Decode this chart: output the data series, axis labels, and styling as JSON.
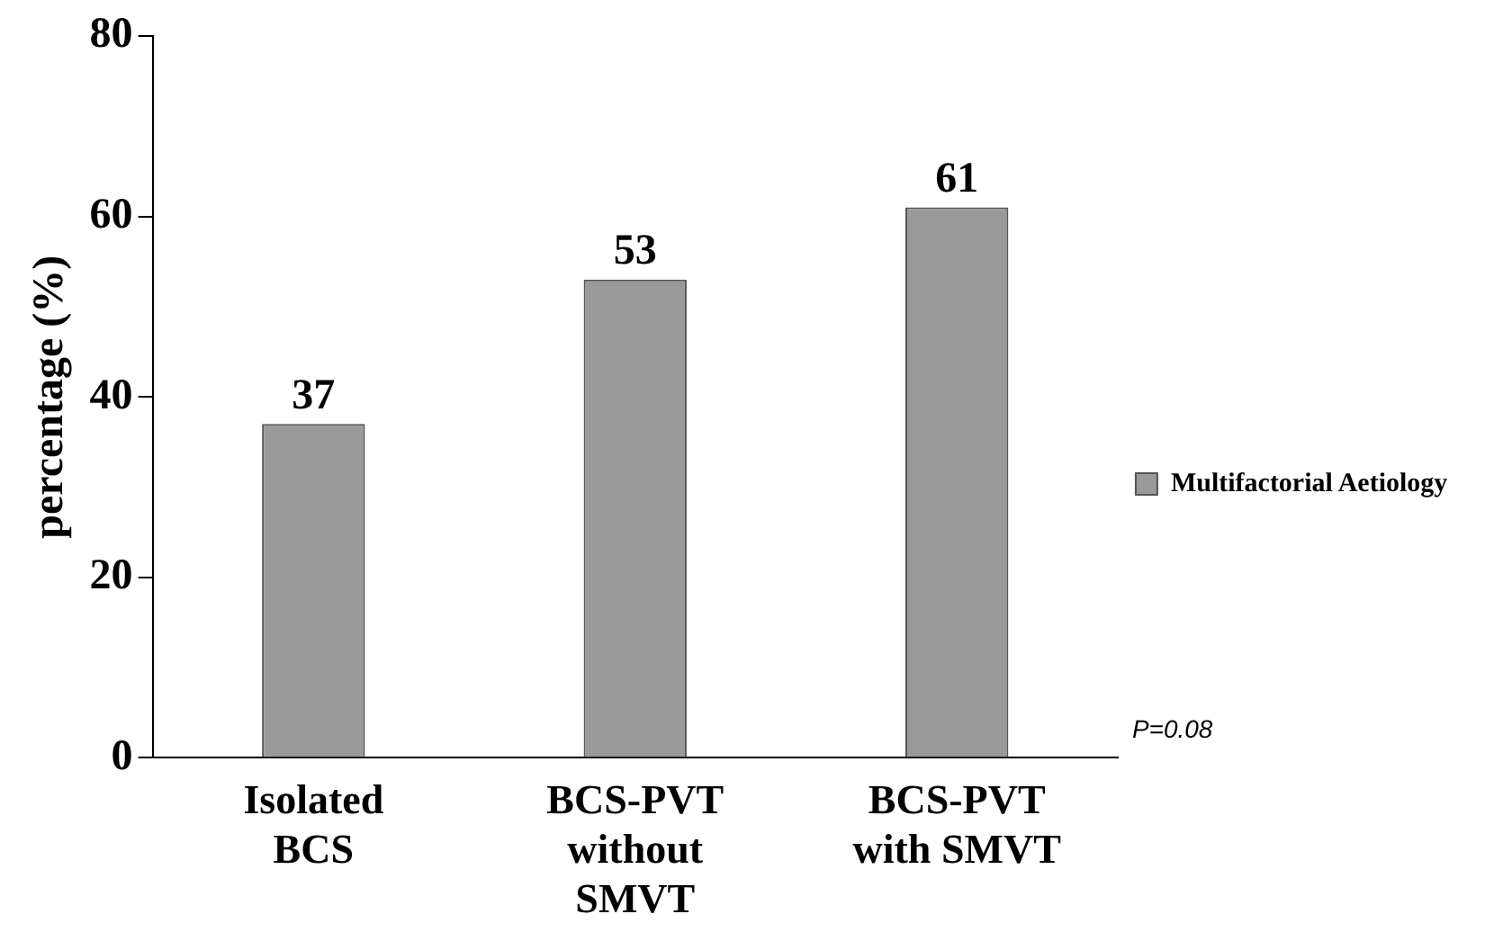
{
  "chart_data": {
    "type": "bar",
    "ylabel": "percentage (%)",
    "categories": [
      "Isolated BCS",
      "BCS-PVT without SMVT",
      "BCS-PVT with SMVT"
    ],
    "series": [
      {
        "name": "Multifactorial Aetiology",
        "color": "#9a9a9a",
        "values": [
          37,
          53,
          61
        ]
      }
    ],
    "ylim": [
      0,
      80
    ],
    "yticks": [
      0,
      20,
      40,
      60,
      80
    ],
    "grid": false,
    "legend": "right",
    "data_labels": true,
    "annotations": [
      "P=0.08"
    ]
  }
}
